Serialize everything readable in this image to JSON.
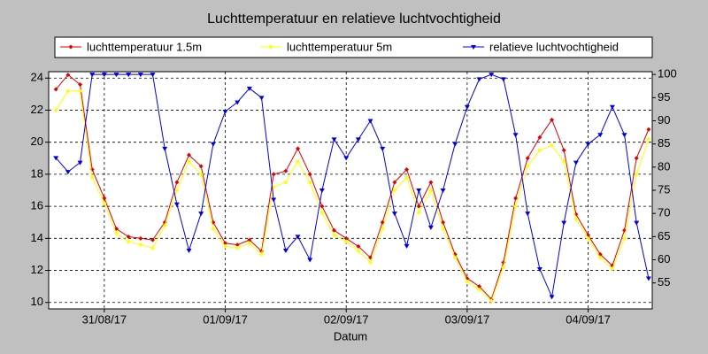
{
  "chart_data": {
    "type": "line",
    "title": "Luchttemperatuur en relatieve luchtvochtigheid",
    "xlabel": "Datum",
    "x": [
      0.6,
      0.7,
      0.8,
      0.9,
      1.0,
      1.1,
      1.2,
      1.3,
      1.4,
      1.5,
      1.6,
      1.7,
      1.8,
      1.9,
      2.0,
      2.1,
      2.2,
      2.3,
      2.4,
      2.5,
      2.6,
      2.7,
      2.8,
      2.9,
      3.0,
      3.1,
      3.2,
      3.3,
      3.4,
      3.5,
      3.6,
      3.7,
      3.8,
      3.9,
      4.0,
      4.1,
      4.2,
      4.3,
      4.4,
      4.5,
      4.6,
      4.7,
      4.8,
      4.9,
      5.0,
      5.1,
      5.2,
      5.3,
      5.4,
      5.5
    ],
    "xlim": [
      0.54,
      5.53
    ],
    "xticks": [
      {
        "value": 1,
        "label": "31/08/17"
      },
      {
        "value": 2,
        "label": "01/09/17"
      },
      {
        "value": 3,
        "label": "02/09/17"
      },
      {
        "value": 4,
        "label": "03/09/17"
      },
      {
        "value": 5,
        "label": "04/09/17"
      }
    ],
    "ylim": [
      9.6,
      24.4
    ],
    "yticks": [
      10,
      12,
      14,
      16,
      18,
      20,
      22,
      24
    ],
    "y2lim": [
      49.4,
      100.6
    ],
    "y2ticks": [
      55,
      60,
      65,
      70,
      75,
      80,
      85,
      90,
      95,
      100
    ],
    "grid": true,
    "series": [
      {
        "name": "luchttemperatuur 1.5m",
        "color": "#e00000",
        "marker": "diamond",
        "values": [
          23.3,
          24.2,
          23.6,
          18.3,
          16.5,
          14.6,
          14.1,
          14.0,
          13.9,
          15.0,
          17.5,
          19.2,
          18.5,
          15.0,
          13.7,
          13.6,
          13.9,
          13.2,
          18.0,
          18.2,
          19.6,
          18.0,
          16.0,
          14.5,
          14.0,
          13.5,
          12.8,
          15.0,
          17.5,
          18.3,
          16.0,
          17.5,
          15.0,
          13.0,
          11.5,
          11.0,
          10.2,
          12.5,
          16.5,
          19.0,
          20.3,
          21.4,
          19.5,
          15.5,
          14.2,
          13.0,
          12.3,
          14.5,
          19.0,
          20.8
        ]
      },
      {
        "name": "luchttemperatuur 5m",
        "color": "#ffff00",
        "marker": "diamond",
        "values": [
          22.0,
          23.2,
          23.2,
          17.8,
          16.2,
          14.3,
          13.8,
          13.6,
          13.4,
          14.8,
          17.0,
          18.8,
          18.0,
          14.6,
          13.5,
          13.4,
          13.7,
          13.0,
          17.2,
          17.5,
          18.8,
          17.5,
          15.6,
          14.2,
          13.8,
          13.2,
          12.5,
          14.6,
          17.0,
          17.8,
          15.6,
          17.0,
          14.6,
          12.8,
          11.3,
          10.8,
          10.1,
          12.2,
          16.0,
          18.5,
          19.5,
          19.8,
          18.8,
          15.2,
          14.0,
          12.8,
          12.1,
          14.0,
          18.0,
          20.2
        ]
      },
      {
        "name": "relatieve luchtvochtigheid",
        "color": "#0000e0",
        "marker": "triangle",
        "axis": "y2",
        "values": [
          82,
          79,
          81,
          100,
          100,
          100,
          100,
          100,
          100,
          84,
          72,
          62,
          70,
          85,
          92,
          94,
          97,
          95,
          73,
          62,
          65,
          60,
          75,
          86,
          82,
          86,
          90,
          84,
          70,
          63,
          75,
          67,
          75,
          85,
          93,
          99,
          100,
          99,
          87,
          70,
          58,
          52,
          68,
          81,
          85,
          87,
          93,
          87,
          68,
          56
        ]
      }
    ]
  }
}
